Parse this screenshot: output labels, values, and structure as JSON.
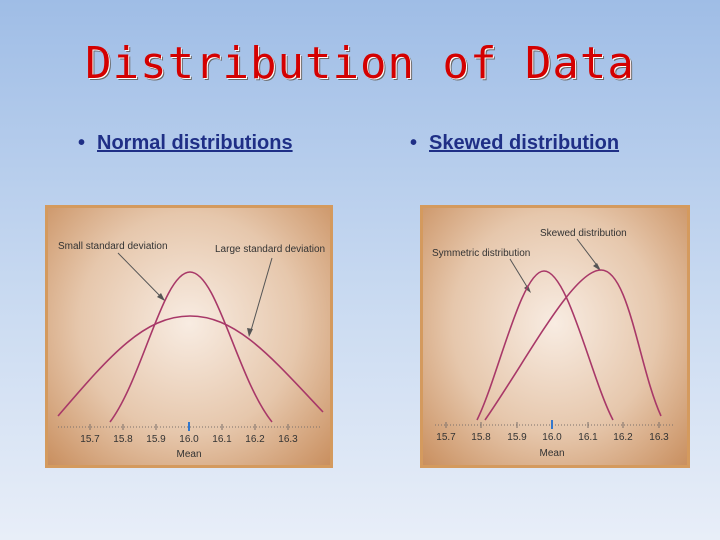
{
  "slide": {
    "title": "Distribution of Data",
    "bullet_left": "Normal distributions",
    "bullet_right": "Skewed distribution"
  },
  "colors": {
    "title": "#d40000",
    "bullet": "#1f2f86",
    "curve": "#a83868",
    "axis": "#7a6f6a",
    "mean_tick": "#3377cc"
  },
  "left_diagram": {
    "label_small": "Small standard deviation",
    "label_large": "Large standard deviation",
    "ticks": [
      "15.7",
      "15.8",
      "15.9",
      "16.0",
      "16.1",
      "16.2",
      "16.3"
    ],
    "axis_label": "Mean"
  },
  "right_diagram": {
    "label_skewed": "Skewed distribution",
    "label_symmetric": "Symmetric distribution",
    "ticks": [
      "15.7",
      "15.8",
      "15.9",
      "16.0",
      "16.1",
      "16.2",
      "16.3"
    ],
    "axis_label": "Mean"
  }
}
